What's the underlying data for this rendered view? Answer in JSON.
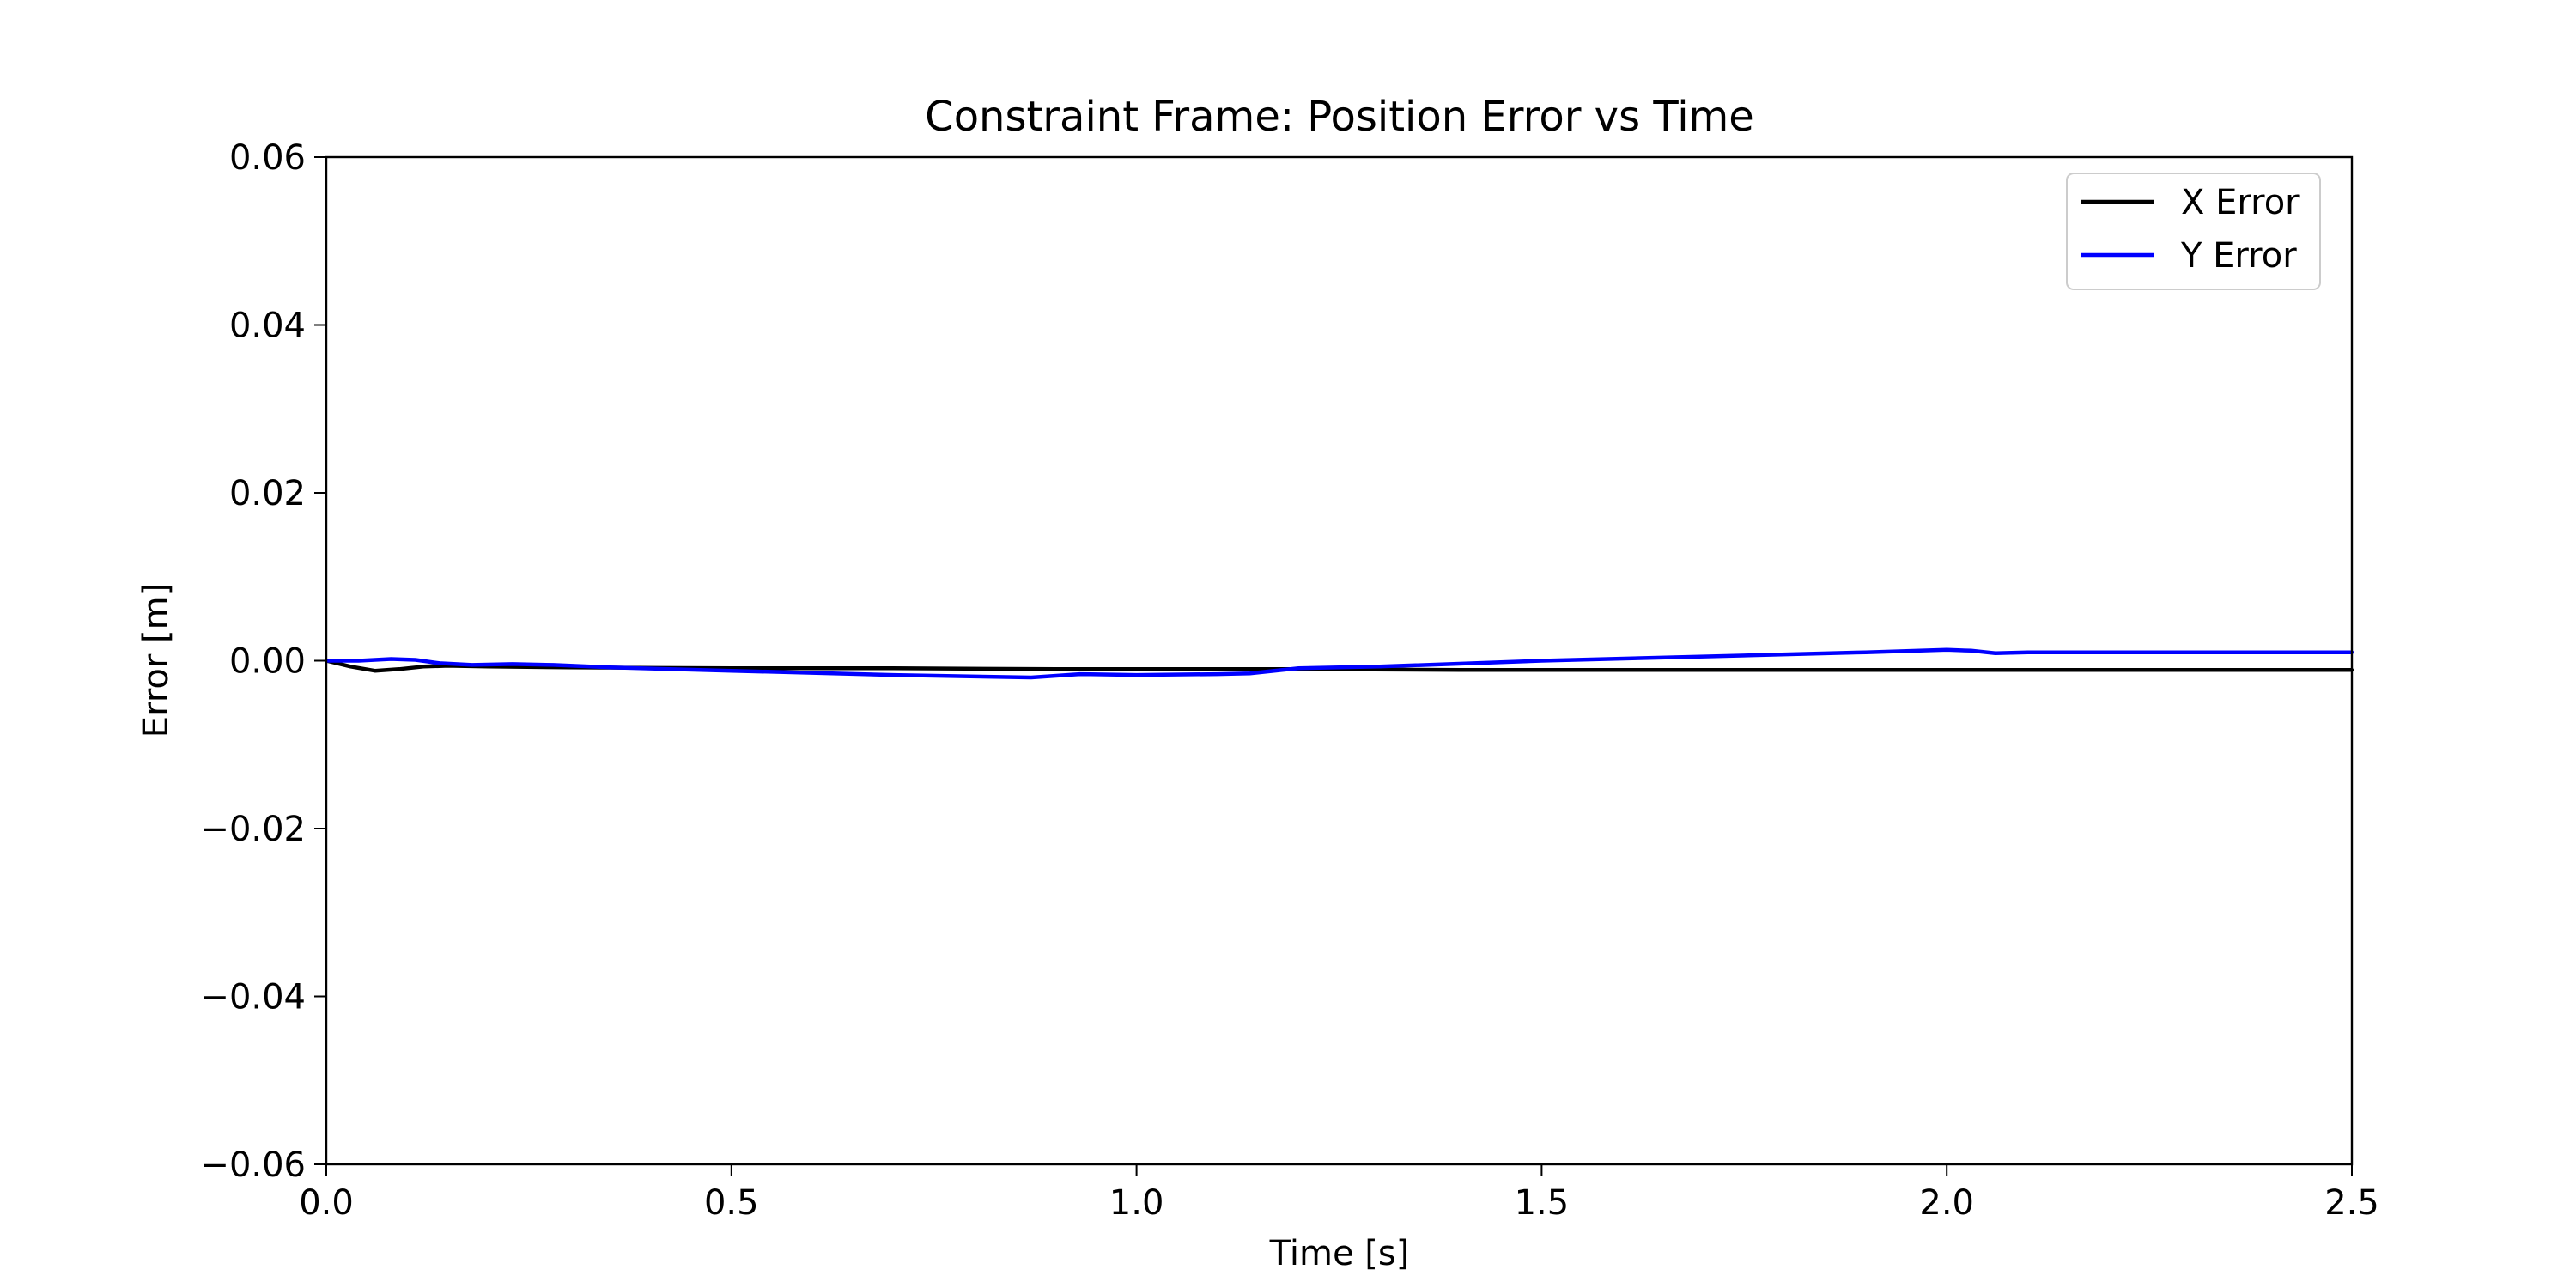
{
  "chart_data": {
    "type": "line",
    "title": "Constraint Frame: Position Error vs Time",
    "xlabel": "Time [s]",
    "ylabel": "Error [m]",
    "xlim": [
      0.0,
      2.5
    ],
    "ylim": [
      -0.06,
      0.06
    ],
    "xticks": [
      "0.0",
      "0.5",
      "1.0",
      "1.5",
      "2.0",
      "2.5"
    ],
    "yticks": [
      "0.06",
      "0.04",
      "0.02",
      "0.00",
      "−0.02",
      "−0.04",
      "−0.06"
    ],
    "grid": false,
    "legend_position": "top-right",
    "series": [
      {
        "name": "X Error",
        "color": "#000000",
        "x": [
          0.0,
          0.03,
          0.06,
          0.09,
          0.12,
          0.15,
          0.2,
          0.3,
          0.5,
          0.7,
          0.9,
          1.0,
          1.1,
          1.2,
          1.4,
          1.6,
          1.8,
          2.0,
          2.05,
          2.1,
          2.2,
          2.3,
          2.5
        ],
        "y": [
          0.0,
          -0.0007,
          -0.0012,
          -0.001,
          -0.0007,
          -0.0006,
          -0.0007,
          -0.0008,
          -0.0009,
          -0.0009,
          -0.001,
          -0.001,
          -0.001,
          -0.001,
          -0.0011,
          -0.0011,
          -0.0011,
          -0.0011,
          -0.0011,
          -0.0011,
          -0.0011,
          -0.0011,
          -0.0011
        ]
      },
      {
        "name": "Y Error",
        "color": "#0000ff",
        "x": [
          0.0,
          0.04,
          0.08,
          0.11,
          0.14,
          0.18,
          0.23,
          0.28,
          0.35,
          0.5,
          0.7,
          0.87,
          0.93,
          1.0,
          1.1,
          1.14,
          1.2,
          1.3,
          1.5,
          1.7,
          1.9,
          2.0,
          2.03,
          2.06,
          2.1,
          2.2,
          2.3,
          2.5
        ],
        "y": [
          0.0,
          0.0,
          0.0002,
          0.0001,
          -0.0003,
          -0.0005,
          -0.0004,
          -0.0005,
          -0.0008,
          -0.0012,
          -0.0017,
          -0.002,
          -0.0016,
          -0.0017,
          -0.0016,
          -0.0015,
          -0.0009,
          -0.0007,
          0.0,
          0.0005,
          0.001,
          0.0013,
          0.0012,
          0.0009,
          0.001,
          0.001,
          0.001,
          0.001
        ]
      }
    ]
  }
}
